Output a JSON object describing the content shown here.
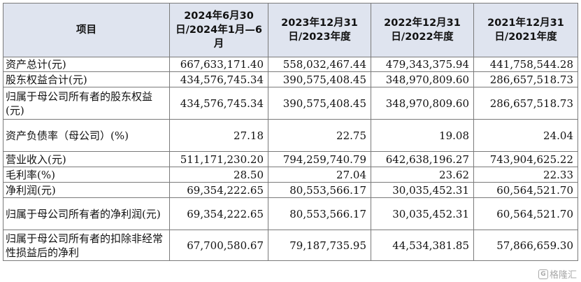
{
  "table": {
    "headers": [
      "项目",
      "2024年6月30日/2024年1月—6月",
      "2023年12月31日/2023年度",
      "2022年12月31日/2022年度",
      "2021年12月31日/2021年度"
    ],
    "rows": [
      [
        "资产总计(元)",
        "667,633,171.40",
        "558,032,467.44",
        "479,343,375.94",
        "441,758,544.28"
      ],
      [
        "股东权益合计(元)",
        "434,576,745.34",
        "390,575,408.45",
        "348,970,809.60",
        "286,657,518.73"
      ],
      [
        "归属于母公司所有者的股东权益(元)",
        "434,576,745.34",
        "390,575,408.45",
        "348,970,809.60",
        "286,657,518.73"
      ],
      [
        "资产负债率（母公司）(%)",
        "27.18",
        "22.75",
        "19.08",
        "24.04"
      ],
      [
        "营业收入(元)",
        "511,171,230.20",
        "794,259,740.79",
        "642,638,196.27",
        "743,904,625.22"
      ],
      [
        "毛利率(%)",
        "28.50",
        "27.04",
        "23.62",
        "22.33"
      ],
      [
        "净利润(元)",
        "69,354,222.65",
        "80,553,566.17",
        "30,035,452.31",
        "60,564,521.70"
      ],
      [
        "归属于母公司所有者的净利润(元)",
        "69,354,222.65",
        "80,553,566.17",
        "30,035,452.31",
        "60,564,521.70"
      ],
      [
        "归属于母公司所有者的扣除非经常性损益后的净利",
        "67,700,580.67",
        "79,187,735.95",
        "44,534,381.85",
        "57,866,659.30"
      ]
    ]
  },
  "watermark": {
    "logo": "G",
    "text": "格隆汇"
  }
}
